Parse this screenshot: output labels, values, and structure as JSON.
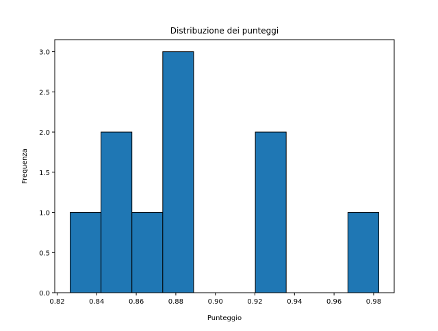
{
  "chart_data": {
    "type": "bar",
    "title": "Distribuzione dei punteggi",
    "xlabel": "Punteggio",
    "ylabel": "Frequenza",
    "bin_edges": [
      0.8266,
      0.8422,
      0.8578,
      0.8734,
      0.889,
      0.9046,
      0.9202,
      0.9358,
      0.9514,
      0.967,
      0.9826
    ],
    "values": [
      1,
      2,
      1,
      3,
      0,
      0,
      2,
      0,
      0,
      1
    ],
    "xlim": [
      0.8188,
      0.9904
    ],
    "ylim": [
      0,
      3.15
    ],
    "xticks": [
      0.82,
      0.84,
      0.86,
      0.88,
      0.9,
      0.92,
      0.94,
      0.96,
      0.98
    ],
    "xtick_labels": [
      "0.82",
      "0.84",
      "0.86",
      "0.88",
      "0.90",
      "0.92",
      "0.94",
      "0.96",
      "0.98"
    ],
    "yticks": [
      0.0,
      0.5,
      1.0,
      1.5,
      2.0,
      2.5,
      3.0
    ],
    "ytick_labels": [
      "0.0",
      "0.5",
      "1.0",
      "1.5",
      "2.0",
      "2.5",
      "3.0"
    ],
    "bar_color": "#1f77b4",
    "edge_color": "#000000",
    "grid": false,
    "legend": "none"
  }
}
